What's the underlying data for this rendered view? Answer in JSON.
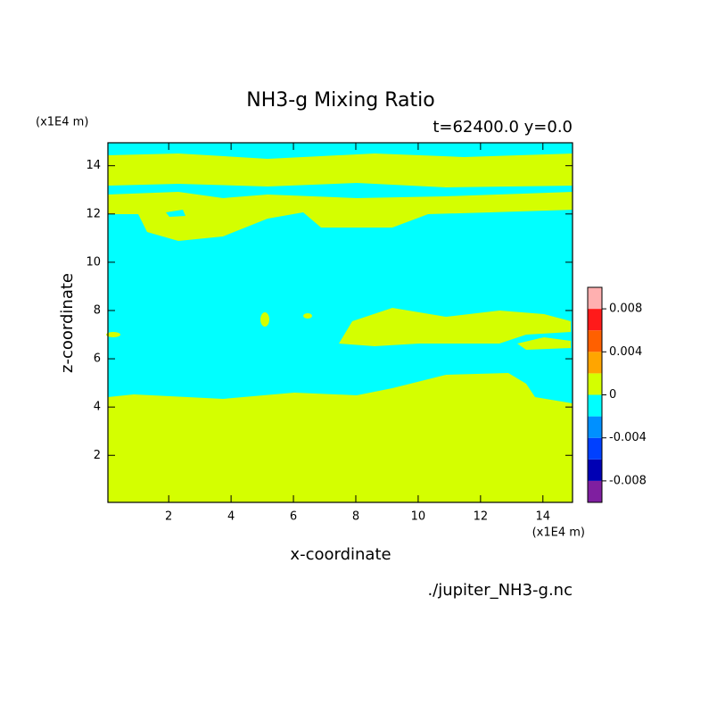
{
  "chart_data": {
    "type": "contour",
    "title": "NH3-g Mixing Ratio",
    "subtitle": "t=62400.0 y=0.0",
    "x_label": "x-coordinate",
    "y_label": "z-coordinate",
    "x_unit": "(x1E4 m)",
    "y_unit": "(x1E4 m)",
    "source": "./jupiter_NH3-g.nc",
    "xlim": [
      0.05,
      14.95
    ],
    "ylim": [
      0.05,
      14.95
    ],
    "xticks": [
      2,
      4,
      6,
      8,
      10,
      12,
      14
    ],
    "yticks": [
      2,
      4,
      6,
      8,
      10,
      12,
      14
    ],
    "levels": [
      -0.01,
      -0.008,
      -0.006,
      -0.004,
      -0.002,
      0,
      0.002,
      0.004,
      0.006,
      0.008,
      0.01
    ],
    "colors": [
      "#7f1fa0",
      "#0000b4",
      "#0040ff",
      "#0090ff",
      "#00ffff",
      "#d4ff00",
      "#ffa500",
      "#ff6000",
      "#ff1a1a",
      "#ffb0b0"
    ],
    "colorbar_ticks": [
      -0.008,
      -0.004,
      0,
      0.004,
      0.008
    ]
  }
}
